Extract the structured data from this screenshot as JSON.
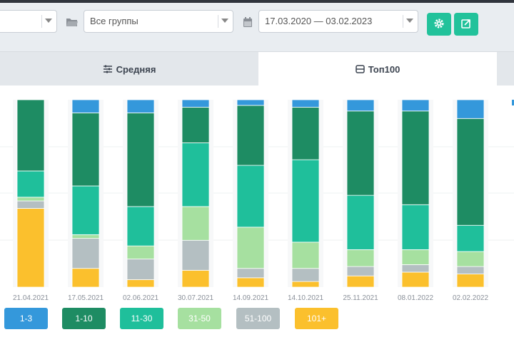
{
  "filters": {
    "group_select": "Все группы",
    "date_range": "17.03.2020 — 03.02.2023"
  },
  "icons": {
    "folder": "folder-icon",
    "calendar": "calendar-icon",
    "settings": "gear-icon",
    "export": "export-icon"
  },
  "colors": {
    "accent": "#22c29b",
    "c1_3": "#3498db",
    "c1_10": "#1e8c63",
    "c11_30": "#1fbf9b",
    "c31_50": "#a6e0a0",
    "c51_100": "#b4bfc2",
    "c101": "#fbc02d"
  },
  "tabs": [
    {
      "label": "Средняя"
    },
    {
      "label": "Топ100"
    }
  ],
  "chart_data": {
    "type": "bar",
    "stacked": true,
    "categories": [
      "21.04.2021",
      "17.05.2021",
      "02.06.2021",
      "30.07.2021",
      "14.09.2021",
      "14.10.2021",
      "25.11.2021",
      "08.01.2022",
      "02.02.2022"
    ],
    "ylim": [
      0,
      100
    ],
    "series": [
      {
        "name": "101+",
        "values": [
          42,
          10,
          4,
          9,
          5,
          3,
          6,
          8,
          7
        ]
      },
      {
        "name": "51-100",
        "values": [
          4,
          16,
          11,
          16,
          5,
          7,
          5,
          4,
          4
        ]
      },
      {
        "name": "31-50",
        "values": [
          2,
          2,
          7,
          18,
          22,
          14,
          9,
          8,
          8
        ]
      },
      {
        "name": "11-30",
        "values": [
          14,
          26,
          21,
          34,
          33,
          44,
          29,
          24,
          14
        ]
      },
      {
        "name": "1-10",
        "values": [
          38,
          39,
          50,
          19,
          32,
          28,
          45,
          50,
          57
        ]
      },
      {
        "name": "1-3",
        "values": [
          0,
          7,
          7,
          4,
          3,
          4,
          6,
          6,
          10
        ]
      }
    ]
  },
  "legend": [
    "1-3",
    "1-10",
    "11-30",
    "31-50",
    "51-100",
    "101+"
  ]
}
